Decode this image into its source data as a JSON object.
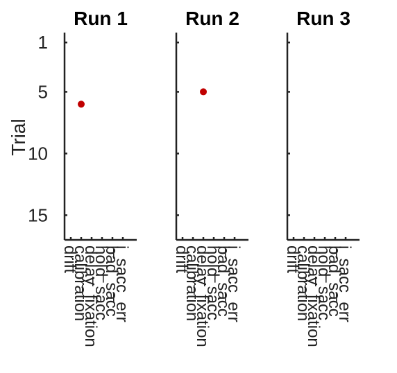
{
  "chart_data": {
    "type": "scatter",
    "ylabel": "Trial",
    "ylim": [
      17,
      0.2
    ],
    "y_reversed": true,
    "yticks": [
      "1",
      "5",
      "10",
      "15"
    ],
    "ytick_values": [
      1,
      5,
      10,
      15
    ],
    "categories": [
      "drift",
      "calibration",
      "delay_fixation",
      "hold_sacc",
      "bad_sacc",
      "i_sacc_err"
    ],
    "marker_color": "#c00000",
    "axis_color": "#222222",
    "panels": [
      {
        "title": "Run 1",
        "points": [
          {
            "x": "calibration",
            "y": 6
          }
        ]
      },
      {
        "title": "Run 2",
        "points": [
          {
            "x": "delay_fixation",
            "y": 5
          }
        ]
      },
      {
        "title": "Run 3",
        "points": []
      }
    ]
  }
}
